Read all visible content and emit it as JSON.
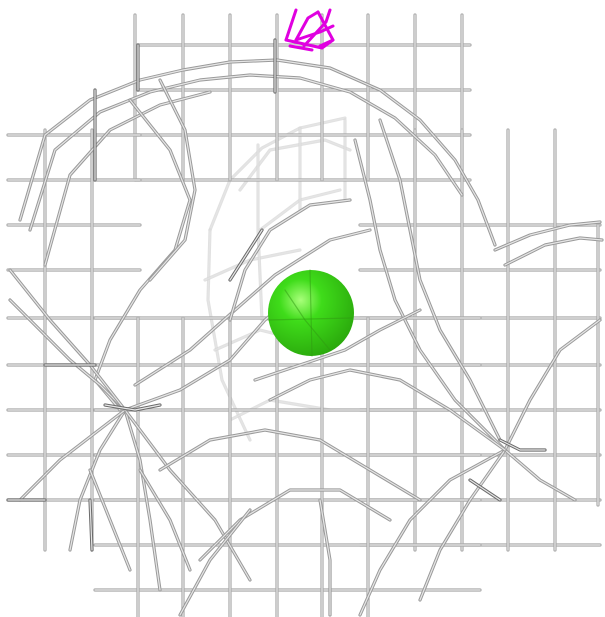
{
  "scene": {
    "description_type": "molecular-density-mesh",
    "background_color": "#ffffff",
    "mesh_color": "#9a9a9a",
    "mesh_highlight_color": "#e6e6e6",
    "mesh_dark_color": "#5a5a5a",
    "sphere_color": "#3fdc1a",
    "sphere_highlight": "#a8ff7a",
    "ligand_color": "#e000e0"
  }
}
